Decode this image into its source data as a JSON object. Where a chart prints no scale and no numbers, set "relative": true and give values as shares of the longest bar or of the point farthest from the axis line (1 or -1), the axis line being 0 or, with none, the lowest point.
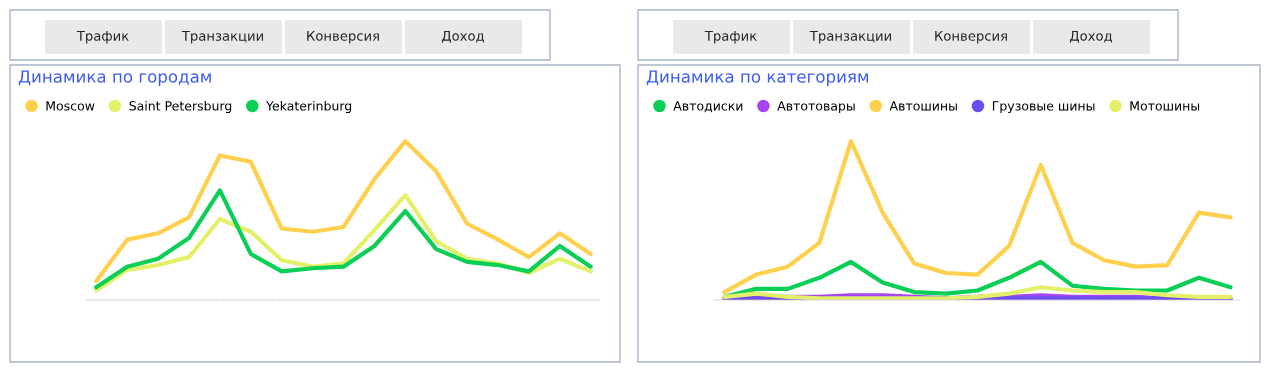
{
  "chart_data": [
    {
      "type": "line",
      "title": "Динамика по городам",
      "relative": true,
      "legend": "top left",
      "marker": "none",
      "line_style": "solid",
      "annotations": [
        "Трафик",
        "Транзакции",
        "Конверсия",
        "Доход"
      ],
      "categories": [
        null,
        null,
        null,
        null,
        null,
        null,
        null,
        null,
        null,
        null,
        null,
        null,
        null,
        null,
        null,
        null,
        null
      ],
      "series": [
        {
          "name": "Moscow",
          "color": "#ffd04d",
          "values": [
            0.12,
            0.38,
            0.42,
            0.52,
            0.91,
            0.87,
            0.45,
            0.43,
            0.46,
            0.76,
            1.0,
            0.81,
            0.48,
            0.38,
            0.27,
            0.42,
            0.29
          ]
        },
        {
          "name": "Saint Petersburg",
          "color": "#e4f06a",
          "values": [
            0.06,
            0.19,
            0.22,
            0.27,
            0.51,
            0.43,
            0.25,
            0.21,
            0.23,
            0.44,
            0.66,
            0.37,
            0.26,
            0.23,
            0.17,
            0.26,
            0.18
          ]
        },
        {
          "name": "Yekaterinburg",
          "color": "#0acf56",
          "values": [
            0.08,
            0.21,
            0.26,
            0.39,
            0.69,
            0.29,
            0.18,
            0.2,
            0.21,
            0.34,
            0.56,
            0.32,
            0.24,
            0.22,
            0.18,
            0.34,
            0.21
          ]
        }
      ]
    },
    {
      "type": "line",
      "title": "Динамика по категориям",
      "relative": true,
      "legend": "top left",
      "marker": "none",
      "line_style": "solid",
      "annotations": [
        "Трафик",
        "Транзакции",
        "Конверсия",
        "Доход"
      ],
      "categories": [
        null,
        null,
        null,
        null,
        null,
        null,
        null,
        null,
        null,
        null,
        null,
        null,
        null,
        null,
        null,
        null,
        null
      ],
      "series": [
        {
          "name": "Автодиски",
          "color": "#0acf56",
          "values": [
            0.02,
            0.07,
            0.07,
            0.14,
            0.24,
            0.11,
            0.05,
            0.04,
            0.06,
            0.14,
            0.24,
            0.09,
            0.07,
            0.06,
            0.06,
            0.14,
            0.08
          ]
        },
        {
          "name": "Автотовары",
          "color": "#a645f2",
          "values": [
            0.01,
            0.02,
            0.02,
            0.02,
            0.03,
            0.03,
            0.02,
            0.01,
            0.02,
            0.02,
            0.03,
            0.02,
            0.02,
            0.02,
            0.01,
            0.01,
            0.01
          ]
        },
        {
          "name": "Автошины",
          "color": "#ffd04d",
          "values": [
            0.05,
            0.16,
            0.21,
            0.36,
            1.0,
            0.55,
            0.23,
            0.17,
            0.16,
            0.34,
            0.85,
            0.36,
            0.25,
            0.21,
            0.22,
            0.55,
            0.52
          ]
        },
        {
          "name": "Грузовые шины",
          "color": "#6b4ef0",
          "values": [
            0.0,
            0.01,
            0.01,
            0.01,
            0.01,
            0.01,
            0.01,
            0.01,
            0.01,
            0.01,
            0.01,
            0.01,
            0.01,
            0.01,
            0.01,
            0.0,
            0.0
          ]
        },
        {
          "name": "Мотошины",
          "color": "#e4f06a",
          "values": [
            0.02,
            0.04,
            0.02,
            0.01,
            0.01,
            0.01,
            0.01,
            0.01,
            0.02,
            0.04,
            0.08,
            0.06,
            0.05,
            0.05,
            0.03,
            0.02,
            0.02
          ]
        }
      ]
    }
  ]
}
